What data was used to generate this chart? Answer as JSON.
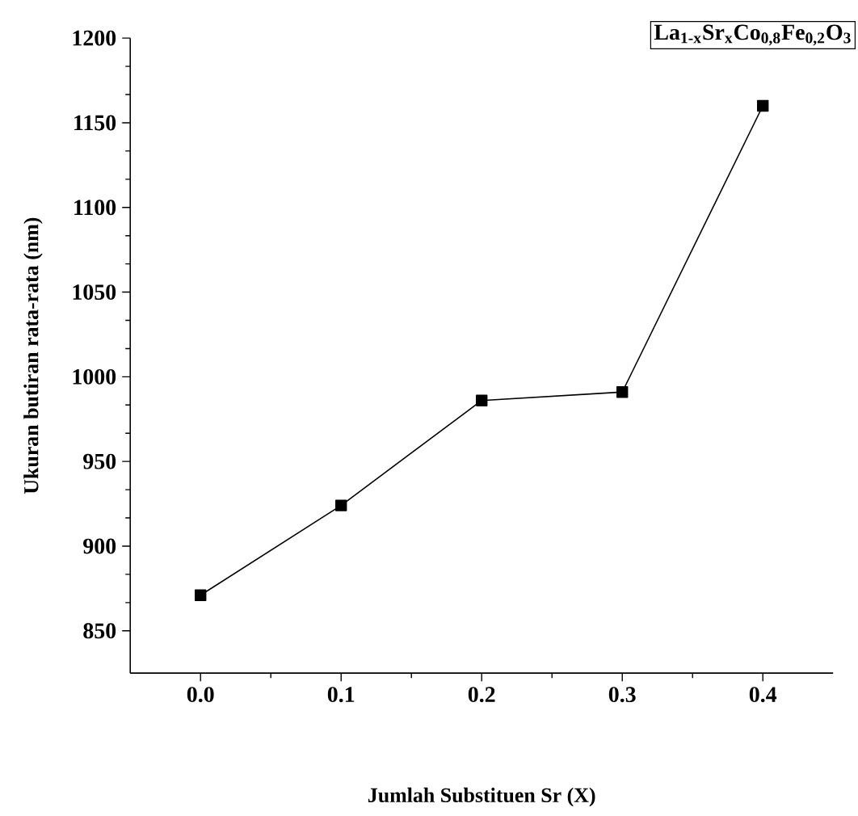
{
  "chart_data": {
    "type": "line",
    "xlabel": "Jumlah Substituen Sr (X)",
    "ylabel": "Ukuran butiran rata-rata (nm)",
    "annotations": [
      "La$_{1-x}$Sr$_{x}$Co$_{0,8}$Fe$_{0,2}$O$_{3}$"
    ],
    "x": [
      0.0,
      0.1,
      0.2,
      0.3,
      0.4
    ],
    "series": [
      {
        "color": "#000000",
        "values": [
          871,
          924,
          986,
          991,
          1160
        ]
      }
    ],
    "xlim": [
      -0.05,
      0.45
    ],
    "ylim": [
      825,
      1200
    ],
    "xticks": [
      {
        "value": 0,
        "label": "0.0"
      },
      {
        "value": 0.1,
        "label": "0.1"
      },
      {
        "value": 0.2,
        "label": "0.2"
      },
      {
        "value": 0.3,
        "label": "0.3"
      },
      {
        "value": 0.4,
        "label": "0.4"
      }
    ],
    "yticks": [
      850,
      900,
      950,
      1000,
      1050,
      1100,
      1150,
      1200
    ],
    "marker": "square",
    "line_style": "solid"
  }
}
